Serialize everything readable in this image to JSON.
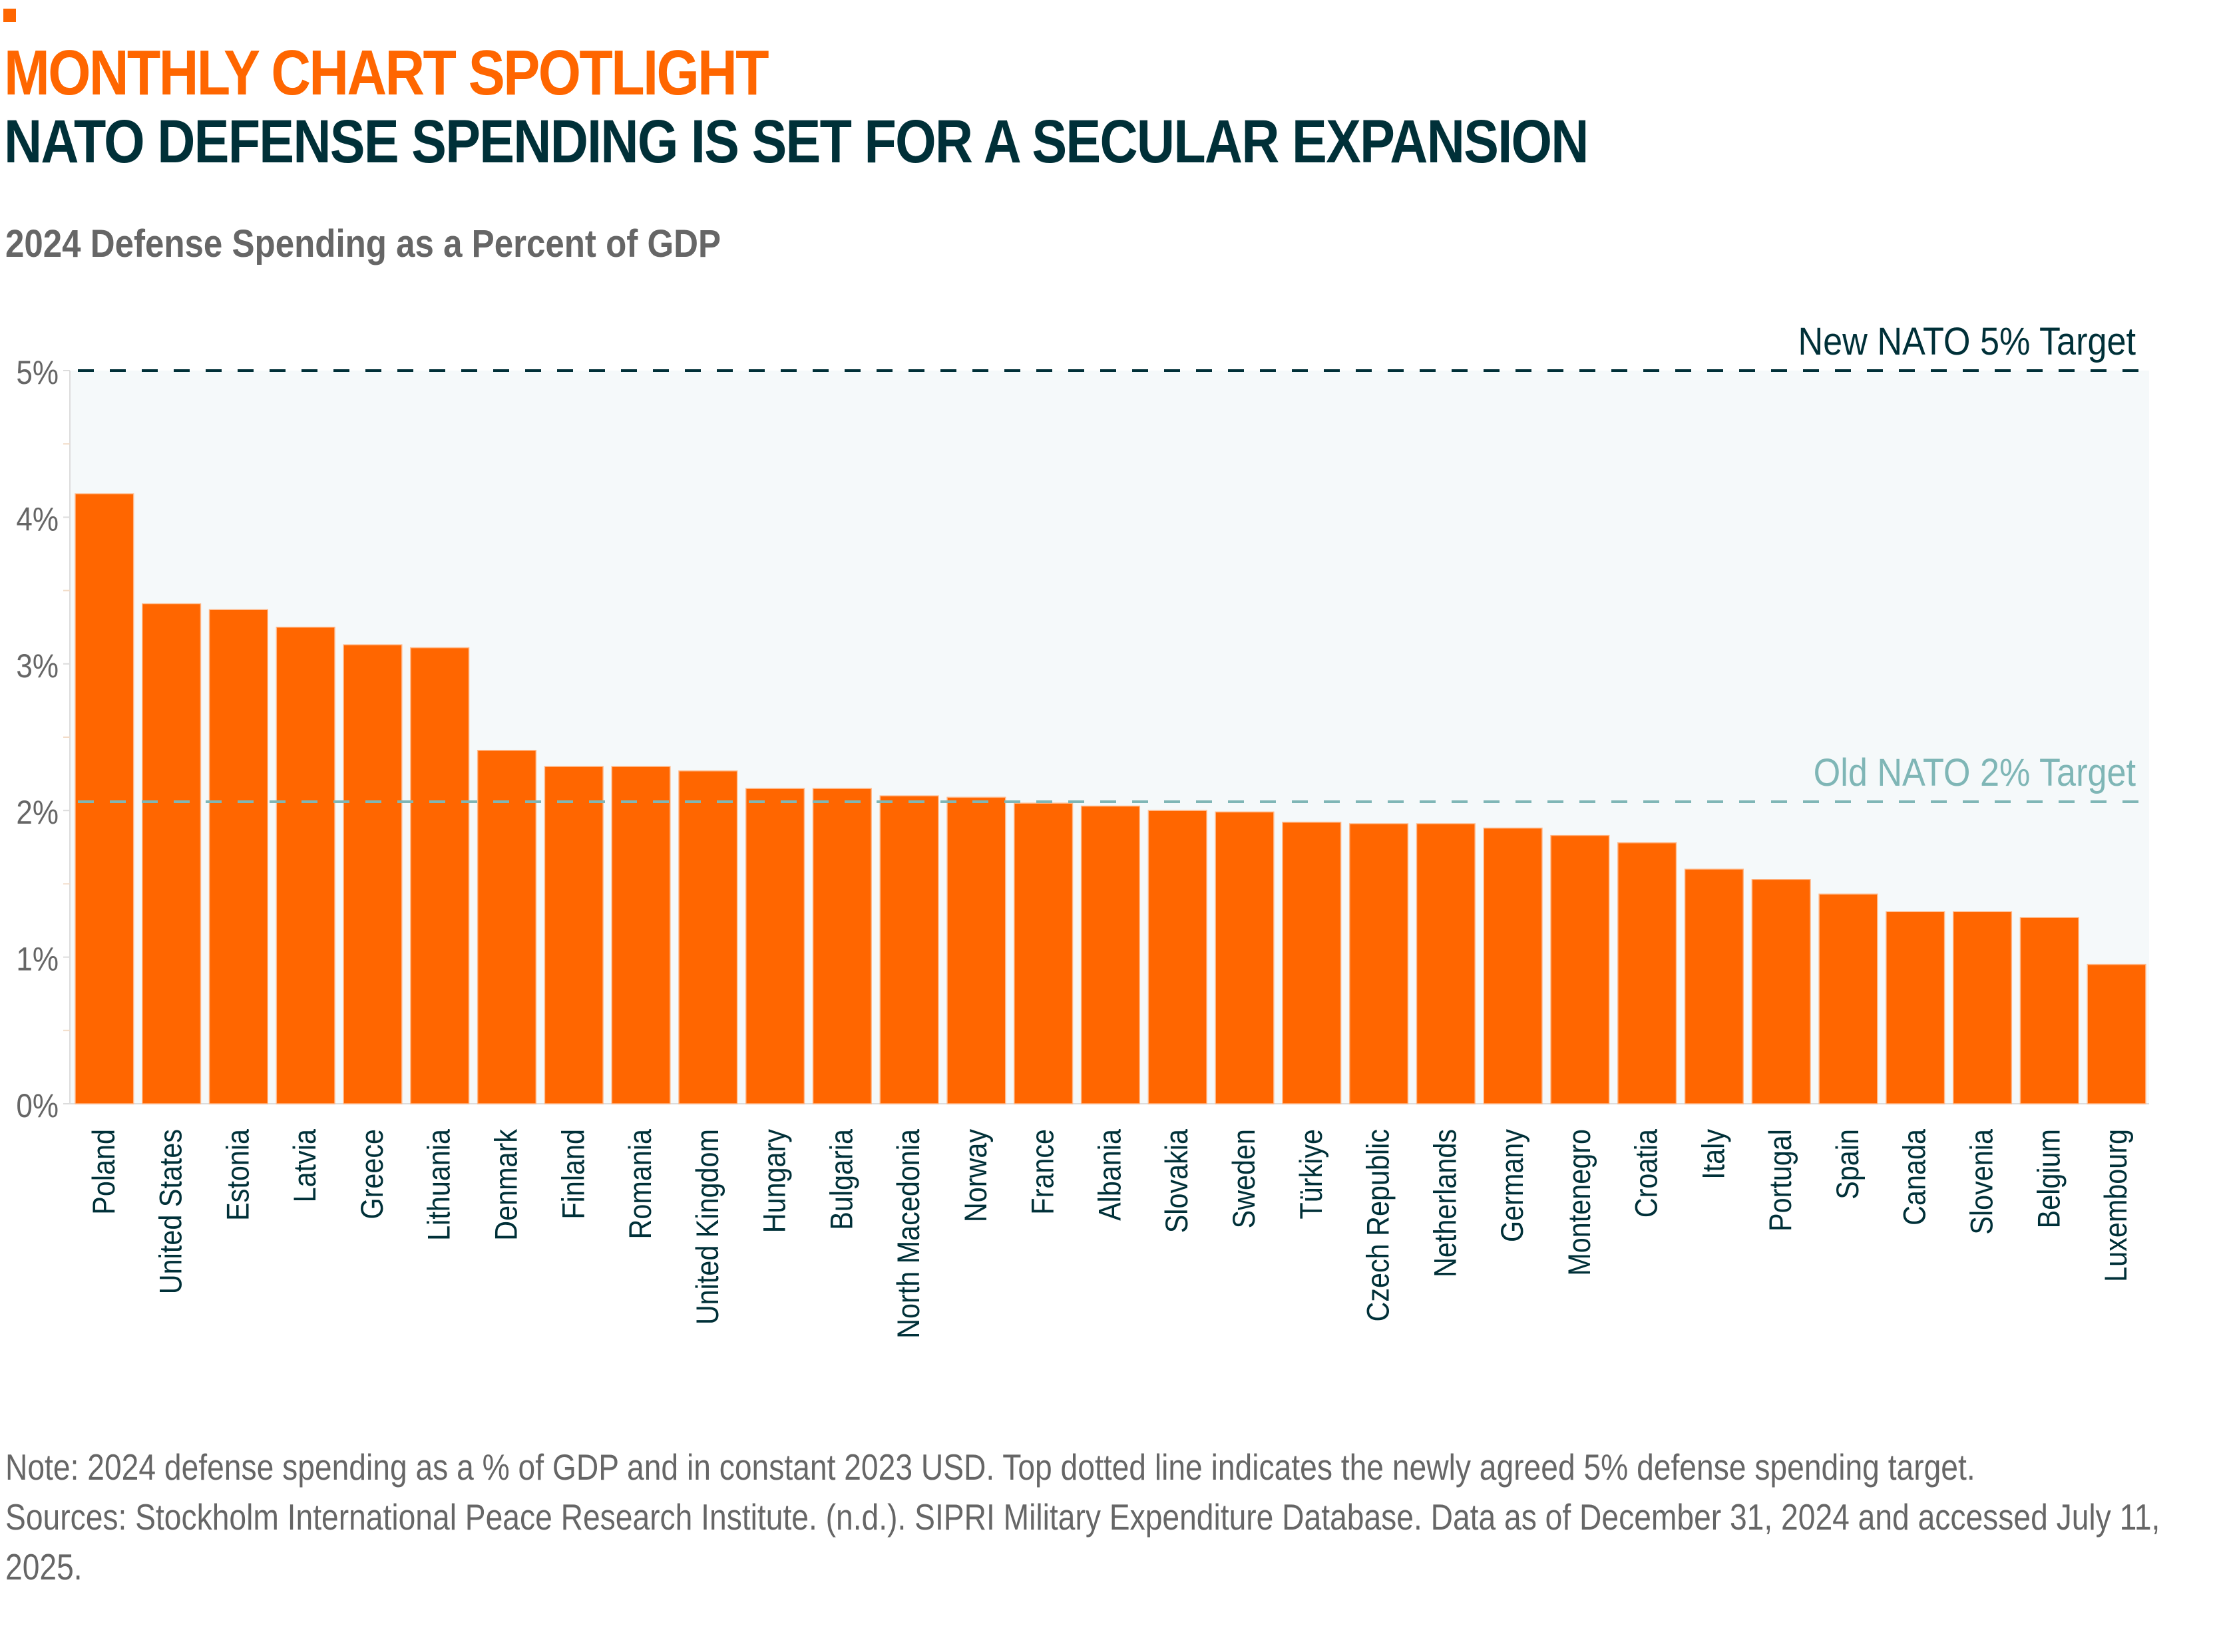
{
  "header": {
    "kicker": "MONTHLY CHART SPOTLIGHT",
    "title": "NATO DEFENSE SPENDING IS SET FOR A SECULAR EXPANSION",
    "subtitle": "2024 Defense Spending as a Percent of GDP"
  },
  "colors": {
    "accent": "#ff6600",
    "title": "#003038",
    "bar": "#ff6600",
    "plot_bg": "#f5f9fa",
    "new_target_line": "#003038",
    "old_target_line": "#7fb6b6",
    "axis_text": "#666666",
    "category_text": "#003038"
  },
  "chart_data": {
    "type": "bar",
    "title": "2024 Defense Spending as a Percent of GDP",
    "xlabel": "",
    "ylabel": "",
    "ylim": [
      0,
      5
    ],
    "yticks": [
      0,
      1,
      2,
      3,
      4,
      5
    ],
    "ytick_labels": [
      "0%",
      "1%",
      "2%",
      "3%",
      "4%",
      "5%"
    ],
    "grid": false,
    "categories": [
      "Poland",
      "United States",
      "Estonia",
      "Latvia",
      "Greece",
      "Lithuania",
      "Denmark",
      "Finland",
      "Romania",
      "United Kingdom",
      "Hungary",
      "Bulgaria",
      "North Macedonia",
      "Norway",
      "France",
      "Albania",
      "Slovakia",
      "Sweden",
      "Türkiye",
      "Czech Republic",
      "Netherlands",
      "Germany",
      "Montenegro",
      "Croatia",
      "Italy",
      "Portugal",
      "Spain",
      "Canada",
      "Slovenia",
      "Belgium",
      "Luxembourg"
    ],
    "values": [
      4.16,
      3.41,
      3.37,
      3.25,
      3.13,
      3.11,
      2.41,
      2.3,
      2.3,
      2.27,
      2.15,
      2.15,
      2.1,
      2.09,
      2.05,
      2.03,
      2.0,
      1.99,
      1.92,
      1.91,
      1.91,
      1.88,
      1.83,
      1.78,
      1.6,
      1.53,
      1.43,
      1.31,
      1.31,
      1.27,
      0.95
    ],
    "reference_lines": [
      {
        "name": "new-target",
        "value": 5,
        "label": "New NATO 5% Target",
        "style": "dashed"
      },
      {
        "name": "old-target",
        "value": 2.06,
        "label": "Old NATO 2% Target",
        "style": "dashed"
      }
    ]
  },
  "footnote": {
    "note": "Note: 2024 defense spending as a % of GDP and in constant 2023 USD. Top dotted line indicates the newly agreed 5% defense spending target.",
    "sources": "Sources: Stockholm International Peace Research Institute. (n.d.). SIPRI Military Expenditure Database. Data as of December 31, 2024 and accessed July 11, 2025."
  }
}
